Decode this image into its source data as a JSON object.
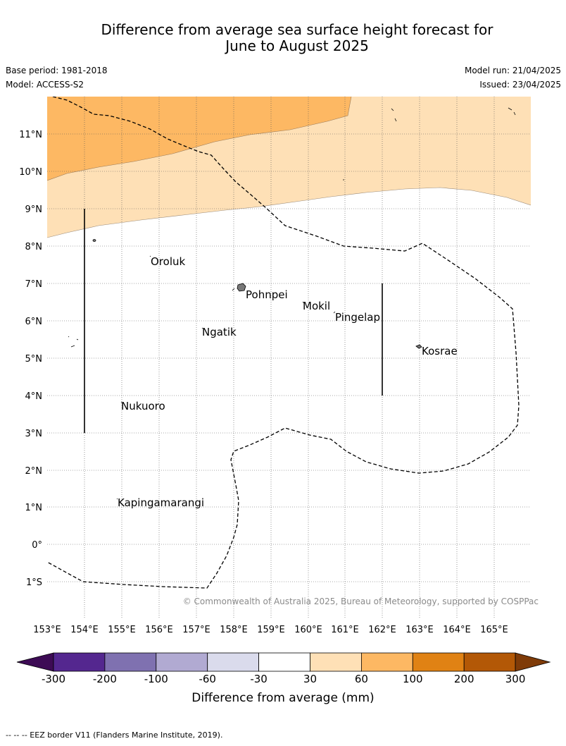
{
  "title_line1": "Difference from average sea surface height forecast for",
  "title_line2": "June to August 2025",
  "meta": {
    "base_period": "Base period: 1981-2018",
    "model": "Model: ACCESS-S2",
    "model_run": "Model run: 21/04/2025",
    "issued": "Issued: 23/04/2025"
  },
  "map": {
    "lat_labels": [
      "11°N",
      "10°N",
      "9°N",
      "8°N",
      "7°N",
      "6°N",
      "5°N",
      "4°N",
      "3°N",
      "2°N",
      "1°N",
      "0°",
      "1°S"
    ],
    "lon_labels": [
      "153°E",
      "154°E",
      "155°E",
      "156°E",
      "157°E",
      "158°E",
      "159°E",
      "160°E",
      "161°E",
      "162°E",
      "163°E",
      "164°E",
      "165°E"
    ],
    "places": [
      {
        "name": "Oroluk"
      },
      {
        "name": "Pohnpei"
      },
      {
        "name": "Mokil"
      },
      {
        "name": "Pingelap"
      },
      {
        "name": "Ngatik"
      },
      {
        "name": "Kosrae"
      },
      {
        "name": "Nukuoro"
      },
      {
        "name": "Kapingamarangi"
      }
    ],
    "copyright": "© Commonwealth of Australia 2025, Bureau of Meteorology, supported by COSPPac"
  },
  "legend": {
    "title": "Difference from average (mm)",
    "ticks": [
      "-300",
      "-200",
      "-100",
      "-60",
      "-30",
      "30",
      "60",
      "100",
      "200",
      "300"
    ],
    "colors": [
      "#3d0b55",
      "#54278f",
      "#7f71b0",
      "#b1aad2",
      "#dadbec",
      "#ffffff",
      "#fee0b6",
      "#fdb863",
      "#e08214",
      "#b35806",
      "#7f3b08"
    ]
  },
  "footer_note": "--  --  -- EEZ border V11 (Flanders Marine Institute, 2019)."
}
